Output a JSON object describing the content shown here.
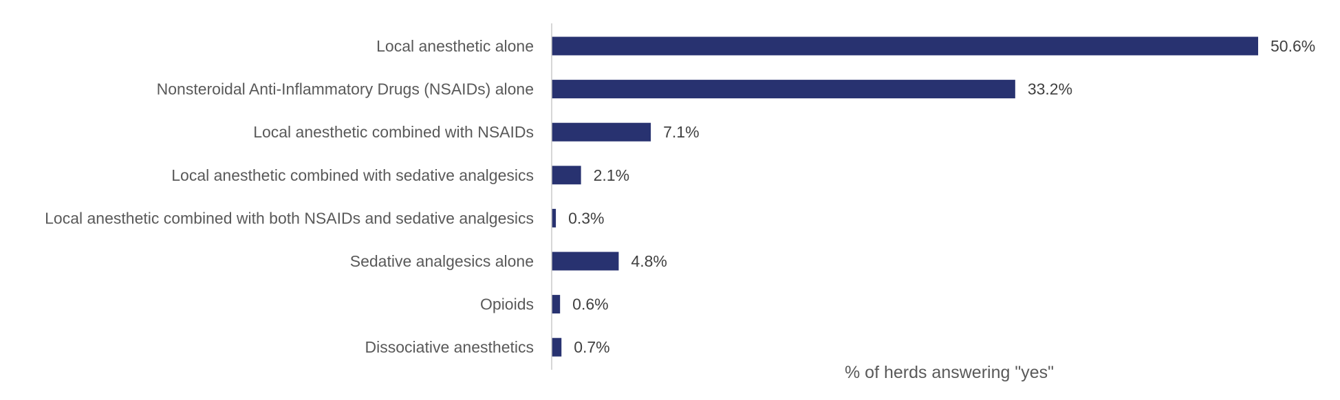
{
  "chart_data": {
    "type": "bar",
    "orientation": "horizontal",
    "categories": [
      "Local anesthetic alone",
      "Nonsteroidal Anti-Inflammatory Drugs (NSAIDs) alone",
      "Local anesthetic combined with NSAIDs",
      "Local anesthetic combined with sedative analgesics",
      "Local anesthetic combined with both NSAIDs and sedative analgesics",
      "Sedative analgesics alone",
      "Opioids",
      "Dissociative anesthetics"
    ],
    "values": [
      50.6,
      33.2,
      7.1,
      2.1,
      0.3,
      4.8,
      0.6,
      0.7
    ],
    "data_labels": [
      "50.6%",
      "33.2%",
      "7.1%",
      "2.1%",
      "0.3%",
      "4.8%",
      "0.6%",
      "0.7%"
    ],
    "xlabel": "% of herds answering \"yes\"",
    "xlim": [
      0,
      50.6
    ],
    "grid": false,
    "legend": "none",
    "colors": {
      "bar": "#283270",
      "axis_line": "#c8c8c8",
      "category_label": "#595959",
      "value_label": "#404040",
      "axis_title": "#595959"
    }
  }
}
